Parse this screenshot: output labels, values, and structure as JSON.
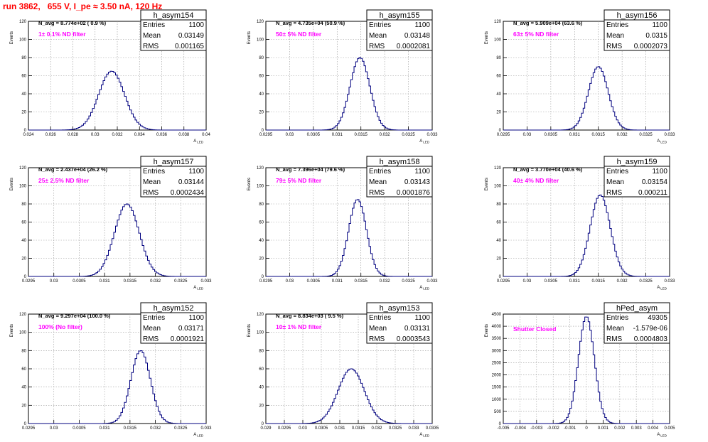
{
  "title": "run 3862,   655 V, I_pe ≈ 3.50 nA, 120 Hz",
  "stat_labels": {
    "entries": "Entries",
    "mean": "Mean",
    "rms": "RMS"
  },
  "axis_titles": {
    "x": "A",
    "x_sub": "LED",
    "y": "Events"
  },
  "chart_data": [
    {
      "type": "bar",
      "name": "h_asym154",
      "title": "N_avg = 8.774e+02 ( 0.9 %)",
      "annotation": "1± 0.1% ND filter",
      "stats": {
        "entries": "1100",
        "mean": "0.03149",
        "rms": "0.001165"
      },
      "xlim": [
        0.024,
        0.04
      ],
      "ylim": [
        0,
        120
      ],
      "xticks": [
        0.024,
        0.026,
        0.028,
        0.03,
        0.032,
        0.034,
        0.036,
        0.038,
        0.04
      ],
      "xtick_labels": [
        "0.024",
        "0.026",
        "0.028",
        "0.03",
        "0.032",
        "0.034",
        "0.036",
        "0.038",
        "0.04"
      ],
      "yticks": [
        0,
        20,
        40,
        60,
        80,
        100,
        120
      ],
      "ytick_labels": [
        "0",
        "20",
        "40",
        "60",
        "80",
        "100",
        "120"
      ],
      "shape": {
        "mean": 0.03149,
        "sigma": 0.001165,
        "peak": 65
      }
    },
    {
      "type": "bar",
      "name": "h_asym155",
      "title": "N_avg = 4.735e+04 (50.9 %)",
      "annotation": "50± 5% ND filter",
      "stats": {
        "entries": "1100",
        "mean": "0.03148",
        "rms": "0.0002081"
      },
      "xlim": [
        0.0295,
        0.033
      ],
      "ylim": [
        0,
        120
      ],
      "xticks": [
        0.0295,
        0.03,
        0.0305,
        0.031,
        0.0315,
        0.032,
        0.0325,
        0.033
      ],
      "xtick_labels": [
        "0.0295",
        "0.03",
        "0.0305",
        "0.031",
        "0.0315",
        "0.032",
        "0.0325",
        "0.033"
      ],
      "yticks": [
        0,
        20,
        40,
        60,
        80,
        100,
        120
      ],
      "ytick_labels": [
        "0",
        "20",
        "40",
        "60",
        "80",
        "100",
        "120"
      ],
      "shape": {
        "mean": 0.03148,
        "sigma": 0.0002081,
        "peak": 80
      }
    },
    {
      "type": "bar",
      "name": "h_asym156",
      "title": "N_avg = 5.909e+04 (63.6 %)",
      "annotation": "63± 5% ND filter",
      "stats": {
        "entries": "1100",
        "mean": "0.0315",
        "rms": "0.0002073"
      },
      "xlim": [
        0.0295,
        0.033
      ],
      "ylim": [
        0,
        120
      ],
      "xticks": [
        0.0295,
        0.03,
        0.0305,
        0.031,
        0.0315,
        0.032,
        0.0325,
        0.033
      ],
      "xtick_labels": [
        "0.0295",
        "0.03",
        "0.0305",
        "0.031",
        "0.0315",
        "0.032",
        "0.0325",
        "0.033"
      ],
      "yticks": [
        0,
        20,
        40,
        60,
        80,
        100,
        120
      ],
      "ytick_labels": [
        "0",
        "20",
        "40",
        "60",
        "80",
        "100",
        "120"
      ],
      "shape": {
        "mean": 0.0315,
        "sigma": 0.0002073,
        "peak": 70
      }
    },
    {
      "type": "bar",
      "name": "h_asym157",
      "title": "N_avg = 2.437e+04 (26.2 %)",
      "annotation": "25± 2.5% ND filter",
      "stats": {
        "entries": "1100",
        "mean": "0.03144",
        "rms": "0.0002434"
      },
      "xlim": [
        0.0295,
        0.033
      ],
      "ylim": [
        0,
        120
      ],
      "xticks": [
        0.0295,
        0.03,
        0.0305,
        0.031,
        0.0315,
        0.032,
        0.0325,
        0.033
      ],
      "xtick_labels": [
        "0.0295",
        "0.03",
        "0.0305",
        "0.031",
        "0.0315",
        "0.032",
        "0.0325",
        "0.033"
      ],
      "yticks": [
        0,
        20,
        40,
        60,
        80,
        100,
        120
      ],
      "ytick_labels": [
        "0",
        "20",
        "40",
        "60",
        "80",
        "100",
        "120"
      ],
      "shape": {
        "mean": 0.03144,
        "sigma": 0.0002434,
        "peak": 80
      }
    },
    {
      "type": "bar",
      "name": "h_asym158",
      "title": "N_avg = 7.396e+04 (79.6 %)",
      "annotation": "79± 5% ND filter",
      "stats": {
        "entries": "1100",
        "mean": "0.03143",
        "rms": "0.0001876"
      },
      "xlim": [
        0.0295,
        0.033
      ],
      "ylim": [
        0,
        120
      ],
      "xticks": [
        0.0295,
        0.03,
        0.0305,
        0.031,
        0.0315,
        0.032,
        0.0325,
        0.033
      ],
      "xtick_labels": [
        "0.0295",
        "0.03",
        "0.0305",
        "0.031",
        "0.0315",
        "0.032",
        "0.0325",
        "0.033"
      ],
      "yticks": [
        0,
        20,
        40,
        60,
        80,
        100,
        120
      ],
      "ytick_labels": [
        "0",
        "20",
        "40",
        "60",
        "80",
        "100",
        "120"
      ],
      "shape": {
        "mean": 0.03143,
        "sigma": 0.0001876,
        "peak": 85
      }
    },
    {
      "type": "bar",
      "name": "h_asym159",
      "title": "N_avg = 3.770e+04 (40.6 %)",
      "annotation": "40± 4% ND filter",
      "stats": {
        "entries": "1100",
        "mean": "0.03154",
        "rms": "0.000211"
      },
      "xlim": [
        0.0295,
        0.033
      ],
      "ylim": [
        0,
        120
      ],
      "xticks": [
        0.0295,
        0.03,
        0.0305,
        0.031,
        0.0315,
        0.032,
        0.0325,
        0.033
      ],
      "xtick_labels": [
        "0.0295",
        "0.03",
        "0.0305",
        "0.031",
        "0.0315",
        "0.032",
        "0.0325",
        "0.033"
      ],
      "yticks": [
        0,
        20,
        40,
        60,
        80,
        100,
        120
      ],
      "ytick_labels": [
        "0",
        "20",
        "40",
        "60",
        "80",
        "100",
        "120"
      ],
      "shape": {
        "mean": 0.03154,
        "sigma": 0.000211,
        "peak": 90
      }
    },
    {
      "type": "bar",
      "name": "h_asym152",
      "title": "N_avg = 9.297e+04 (100.0 %)",
      "annotation": "100% (No filter)",
      "stats": {
        "entries": "1100",
        "mean": "0.03171",
        "rms": "0.0001921"
      },
      "xlim": [
        0.0295,
        0.033
      ],
      "ylim": [
        0,
        120
      ],
      "xticks": [
        0.0295,
        0.03,
        0.0305,
        0.031,
        0.0315,
        0.032,
        0.0325,
        0.033
      ],
      "xtick_labels": [
        "0.0295",
        "0.03",
        "0.0305",
        "0.031",
        "0.0315",
        "0.032",
        "0.0325",
        "0.033"
      ],
      "yticks": [
        0,
        20,
        40,
        60,
        80,
        100,
        120
      ],
      "ytick_labels": [
        "0",
        "20",
        "40",
        "60",
        "80",
        "100",
        "120"
      ],
      "shape": {
        "mean": 0.03171,
        "sigma": 0.0001921,
        "peak": 80
      }
    },
    {
      "type": "bar",
      "name": "h_asym153",
      "title": "N_avg = 8.834e+03 ( 9.5 %)",
      "annotation": "10± 1% ND filter",
      "stats": {
        "entries": "1100",
        "mean": "0.03131",
        "rms": "0.0003543"
      },
      "xlim": [
        0.029,
        0.0335
      ],
      "ylim": [
        0,
        120
      ],
      "xticks": [
        0.029,
        0.0295,
        0.03,
        0.0305,
        0.031,
        0.0315,
        0.032,
        0.0325,
        0.033,
        0.0335
      ],
      "xtick_labels": [
        "0.029",
        "0.0295",
        "0.03",
        "0.0305",
        "0.031",
        "0.0315",
        "0.032",
        "0.0325",
        "0.033",
        "0.0335"
      ],
      "yticks": [
        0,
        20,
        40,
        60,
        80,
        100,
        120
      ],
      "ytick_labels": [
        "0",
        "20",
        "40",
        "60",
        "80",
        "100",
        "120"
      ],
      "shape": {
        "mean": 0.03131,
        "sigma": 0.0003543,
        "peak": 60
      }
    },
    {
      "type": "bar",
      "name": "hPed_asym",
      "title": "",
      "annotation": "Shutter Closed",
      "stats": {
        "entries": "49305",
        "mean": "-1.579e-06",
        "rms": "0.0004803"
      },
      "xlim": [
        -0.005,
        0.005
      ],
      "ylim": [
        0,
        4500
      ],
      "xticks": [
        -0.005,
        -0.004,
        -0.003,
        -0.002,
        -0.001,
        0,
        0.001,
        0.002,
        0.003,
        0.004,
        0.005
      ],
      "xtick_labels": [
        "-0.005",
        "-0.004",
        "-0.003",
        "-0.002",
        "-0.001",
        "0",
        "0.001",
        "0.002",
        "0.003",
        "0.004",
        "0.005"
      ],
      "yticks": [
        0,
        500,
        1000,
        1500,
        2000,
        2500,
        3000,
        3500,
        4000,
        4500
      ],
      "ytick_labels": [
        "0",
        "500",
        "1000",
        "1500",
        "2000",
        "2500",
        "3000",
        "3500",
        "4000",
        "4500"
      ],
      "shape": {
        "mean": -1.6e-06,
        "sigma": 0.0004803,
        "peak": 4400
      }
    }
  ]
}
